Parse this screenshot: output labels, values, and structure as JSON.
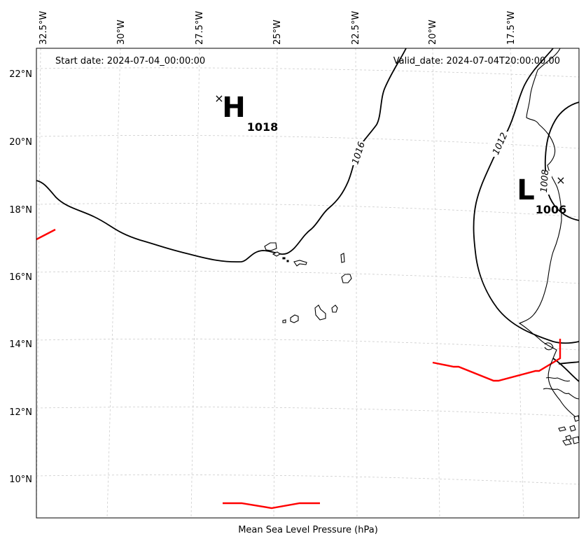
{
  "map": {
    "header_left": "Start date: 2024-07-04_00:00:00",
    "header_right": "Valid_date: 2024-07-04T20:00:00.00",
    "caption": "Mean Sea Level Pressure (hPa)",
    "lon_labels": [
      "32.5°W",
      "30°W",
      "27.5°W",
      "25°W",
      "22.5°W",
      "20°W",
      "17.5°W"
    ],
    "lat_labels": [
      "22°N",
      "20°N",
      "18°N",
      "16°N",
      "14°N",
      "12°N",
      "10°N"
    ],
    "high": {
      "letter": "H",
      "value": "1018",
      "marker": "×"
    },
    "low": {
      "letter": "L",
      "value": "1006",
      "marker": "×"
    },
    "contour_labels": [
      "1016",
      "1012",
      "1008"
    ],
    "colors": {
      "isobar": "#000000",
      "front": "#ff0000",
      "grid": "#cccccc",
      "coast": "#000000"
    }
  }
}
